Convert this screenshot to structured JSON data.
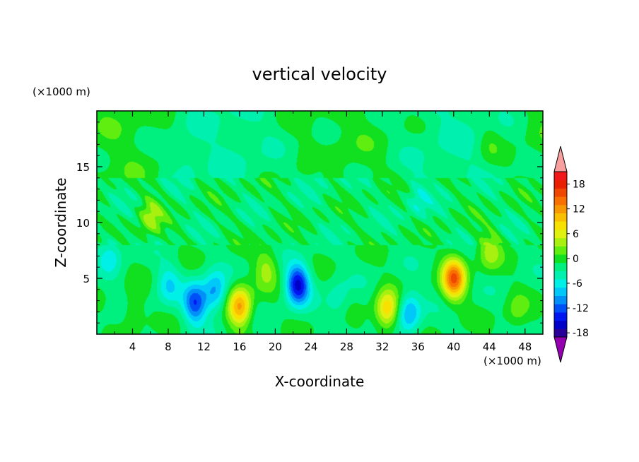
{
  "chart_data": {
    "type": "heatmap",
    "title": "vertical velocity",
    "xlabel": "X-coordinate",
    "ylabel": "Z-coordinate",
    "x_unit": "(×1000 m)",
    "y_unit": "(×1000 m)",
    "xlim": [
      0,
      50
    ],
    "ylim": [
      0,
      20
    ],
    "x_ticks": [
      4,
      8,
      12,
      16,
      20,
      24,
      28,
      32,
      36,
      40,
      44,
      48
    ],
    "y_ticks": [
      5,
      10,
      15
    ],
    "colorbar": {
      "min": -21,
      "max": 21,
      "step": 2,
      "tick_labels": [
        "18",
        "12",
        "6",
        "0",
        "-6",
        "-12",
        "-18"
      ],
      "tick_values": [
        18,
        12,
        6,
        0,
        -6,
        -12,
        -18
      ],
      "extend": "both",
      "colors": [
        "#9400b0",
        "#2a0099",
        "#0000c8",
        "#0016f0",
        "#0050f8",
        "#0090f8",
        "#00c8f8",
        "#00f0e8",
        "#00f0b0",
        "#00f080",
        "#10e020",
        "#60ee10",
        "#a8f010",
        "#e0f010",
        "#f8e000",
        "#f8c000",
        "#f89800",
        "#f87000",
        "#f04800",
        "#e82000",
        "#f01818",
        "#f8a0a0"
      ]
    },
    "features": [
      {
        "x": 16.0,
        "z": 2.5,
        "value": 13
      },
      {
        "x": 32.5,
        "z": 2.2,
        "value": 10
      },
      {
        "x": 40.0,
        "z": 5.0,
        "value": 16
      },
      {
        "x": 44.0,
        "z": 7.5,
        "value": 5
      },
      {
        "x": 22.5,
        "z": 4.5,
        "value": -14
      },
      {
        "x": 11.0,
        "z": 2.8,
        "value": -11
      },
      {
        "x": 13.2,
        "z": 3.8,
        "value": -8
      },
      {
        "x": 35.0,
        "z": 2.0,
        "value": -8
      },
      {
        "x": 19.0,
        "z": 6.0,
        "value": 5
      },
      {
        "x": 6.0,
        "z": 10.5,
        "value": 5
      },
      {
        "x": 4.0,
        "z": 2.0,
        "value": 3
      },
      {
        "x": 8.0,
        "z": 4.5,
        "value": -5
      },
      {
        "x": 27.0,
        "z": 3.0,
        "value": -3
      },
      {
        "x": 47.0,
        "z": 2.0,
        "value": 3
      },
      {
        "x": 1.5,
        "z": 7.0,
        "value": -4
      },
      {
        "x": 10.0,
        "z": 15.5,
        "value": -2
      },
      {
        "x": 25.0,
        "z": 15.0,
        "value": -2
      },
      {
        "x": 36.0,
        "z": 12.0,
        "value": -3
      },
      {
        "x": 44.0,
        "z": 17.0,
        "value": 2
      }
    ]
  }
}
